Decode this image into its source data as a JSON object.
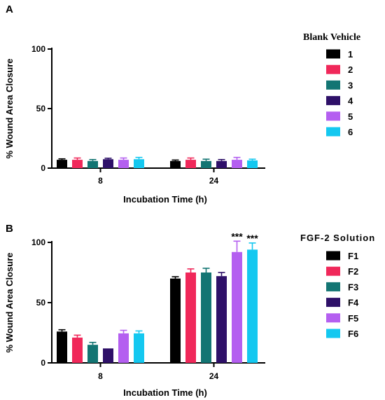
{
  "chart_data": [
    {
      "panel": "A",
      "type": "bar",
      "xlabel": "Incubation Time (h)",
      "ylabel": "% Wound Area Closure",
      "ylim": [
        0,
        100
      ],
      "yticks": [
        "0",
        "50",
        "100"
      ],
      "categories": [
        "8",
        "24"
      ],
      "legend_title": "Blank Vehicle",
      "legend_position": "right",
      "series": [
        {
          "name": "1",
          "color": "#000000",
          "values": [
            7,
            6
          ],
          "errors": [
            0.8,
            0.8
          ]
        },
        {
          "name": "2",
          "color": "#f0285a",
          "values": [
            7,
            7
          ],
          "errors": [
            1.5,
            1.5
          ]
        },
        {
          "name": "3",
          "color": "#137573",
          "values": [
            6,
            6
          ],
          "errors": [
            1.2,
            1.5
          ]
        },
        {
          "name": "4",
          "color": "#2e1068",
          "values": [
            7.5,
            6
          ],
          "errors": [
            0.8,
            1.2
          ]
        },
        {
          "name": "5",
          "color": "#b45ff0",
          "values": [
            7,
            7
          ],
          "errors": [
            1.5,
            2
          ]
        },
        {
          "name": "6",
          "color": "#14c8f0",
          "values": [
            7.5,
            6.5
          ],
          "errors": [
            1.5,
            1
          ]
        }
      ],
      "annotations": []
    },
    {
      "panel": "B",
      "type": "bar",
      "xlabel": "Incubation Time (h)",
      "ylabel": "% Wound Area Closure",
      "ylim": [
        0,
        100
      ],
      "yticks": [
        "0",
        "50",
        "100"
      ],
      "categories": [
        "8",
        "24"
      ],
      "legend_title": "FGF-2 Solution",
      "legend_position": "right",
      "series": [
        {
          "name": "F1",
          "color": "#000000",
          "values": [
            26,
            70
          ],
          "errors": [
            1.5,
            1.5
          ]
        },
        {
          "name": "F2",
          "color": "#f0285a",
          "values": [
            21,
            75
          ],
          "errors": [
            2,
            3
          ]
        },
        {
          "name": "F3",
          "color": "#137573",
          "values": [
            15,
            75
          ],
          "errors": [
            2,
            3.5
          ]
        },
        {
          "name": "F4",
          "color": "#2e1068",
          "values": [
            12,
            72
          ],
          "errors": [
            0,
            3
          ]
        },
        {
          "name": "F5",
          "color": "#b45ff0",
          "values": [
            24.5,
            92
          ],
          "errors": [
            2.5,
            9
          ]
        },
        {
          "name": "F6",
          "color": "#14c8f0",
          "values": [
            24.5,
            94
          ],
          "errors": [
            2,
            5.5
          ]
        }
      ],
      "annotations": [
        {
          "series": "F5",
          "category": "24",
          "text": "***"
        },
        {
          "series": "F6",
          "category": "24",
          "text": "***"
        }
      ]
    }
  ]
}
